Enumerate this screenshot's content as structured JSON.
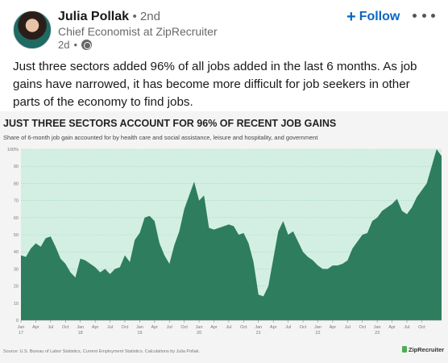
{
  "post": {
    "author_name": "Julia Pollak",
    "degree": "2nd",
    "headline": "Chief Economist at ZipRecruiter",
    "time": "2d",
    "follow_label": "Follow",
    "text": "Just three sectors added 96% of all jobs added in the last 6 months. As job gains have narrowed, it has become more difficult for job seekers in other parts of the economy to find jobs."
  },
  "icons": {
    "avatar": "avatar-photo",
    "visibility": "globe-icon",
    "follow": "plus-icon",
    "more": "ellipsis-icon"
  },
  "colors": {
    "accent": "#0a66c2",
    "area_fill": "#2e7d5e",
    "plot_bg": "#d3efe3",
    "brand_green": "#4caf50"
  },
  "chart_data": {
    "type": "area",
    "title": "JUST THREE SECTORS ACCOUNT FOR 96% OF RECENT JOB GAINS",
    "subtitle": "Share of 6-month job gain accounted for by health care and social assistance, leisure and hospitality, and government",
    "source": "Source: U.S. Bureau of Labor Statistics, Current Employment Statistics. Calculations by Julia Pollak.",
    "brand": "ZipRecruiter",
    "ylim": [
      0,
      100
    ],
    "yticks": [
      "0",
      "10",
      "20",
      "30",
      "40",
      "50",
      "60",
      "70",
      "80",
      "90",
      "100%"
    ],
    "xticks": [
      {
        "label": "Jan",
        "year": "17",
        "index": 0
      },
      {
        "label": "Apr",
        "year": "",
        "index": 3
      },
      {
        "label": "Jul",
        "year": "",
        "index": 6
      },
      {
        "label": "Oct",
        "year": "",
        "index": 9
      },
      {
        "label": "Jan",
        "year": "18",
        "index": 12
      },
      {
        "label": "Apr",
        "year": "",
        "index": 15
      },
      {
        "label": "Jul",
        "year": "",
        "index": 18
      },
      {
        "label": "Oct",
        "year": "",
        "index": 21
      },
      {
        "label": "Jan",
        "year": "19",
        "index": 24
      },
      {
        "label": "Apr",
        "year": "",
        "index": 27
      },
      {
        "label": "Jul",
        "year": "",
        "index": 30
      },
      {
        "label": "Oct",
        "year": "",
        "index": 33
      },
      {
        "label": "Jan",
        "year": "20",
        "index": 36
      },
      {
        "label": "Apr",
        "year": "",
        "index": 39
      },
      {
        "label": "Jul",
        "year": "",
        "index": 42
      },
      {
        "label": "Oct",
        "year": "",
        "index": 45
      },
      {
        "label": "Jan",
        "year": "21",
        "index": 48
      },
      {
        "label": "Apr",
        "year": "",
        "index": 51
      },
      {
        "label": "Jul",
        "year": "",
        "index": 54
      },
      {
        "label": "Oct",
        "year": "",
        "index": 57
      },
      {
        "label": "Jan",
        "year": "22",
        "index": 60
      },
      {
        "label": "Apr",
        "year": "",
        "index": 63
      },
      {
        "label": "Jul",
        "year": "",
        "index": 66
      },
      {
        "label": "Oct",
        "year": "",
        "index": 69
      },
      {
        "label": "Jan",
        "year": "23",
        "index": 72
      },
      {
        "label": "Apr",
        "year": "",
        "index": 75
      },
      {
        "label": "Jul",
        "year": "",
        "index": 78
      },
      {
        "label": "Oct",
        "year": "",
        "index": 81
      }
    ],
    "values": [
      38,
      37,
      42,
      45,
      43,
      48,
      49,
      43,
      36,
      33,
      28,
      25,
      36,
      35,
      33,
      31,
      28,
      30,
      27,
      30,
      31,
      38,
      34,
      47,
      51,
      60,
      61,
      58,
      45,
      38,
      33,
      44,
      52,
      65,
      73,
      81,
      70,
      73,
      54,
      53,
      54,
      55,
      56,
      55,
      50,
      51,
      45,
      34,
      15,
      14,
      20,
      36,
      52,
      58,
      50,
      52,
      46,
      40,
      37,
      35,
      32,
      30,
      30,
      32,
      32,
      33,
      35,
      42,
      46,
      50,
      51,
      58,
      60,
      64,
      66,
      68,
      71,
      64,
      62,
      66,
      72,
      76,
      80,
      90,
      100,
      96
    ]
  }
}
